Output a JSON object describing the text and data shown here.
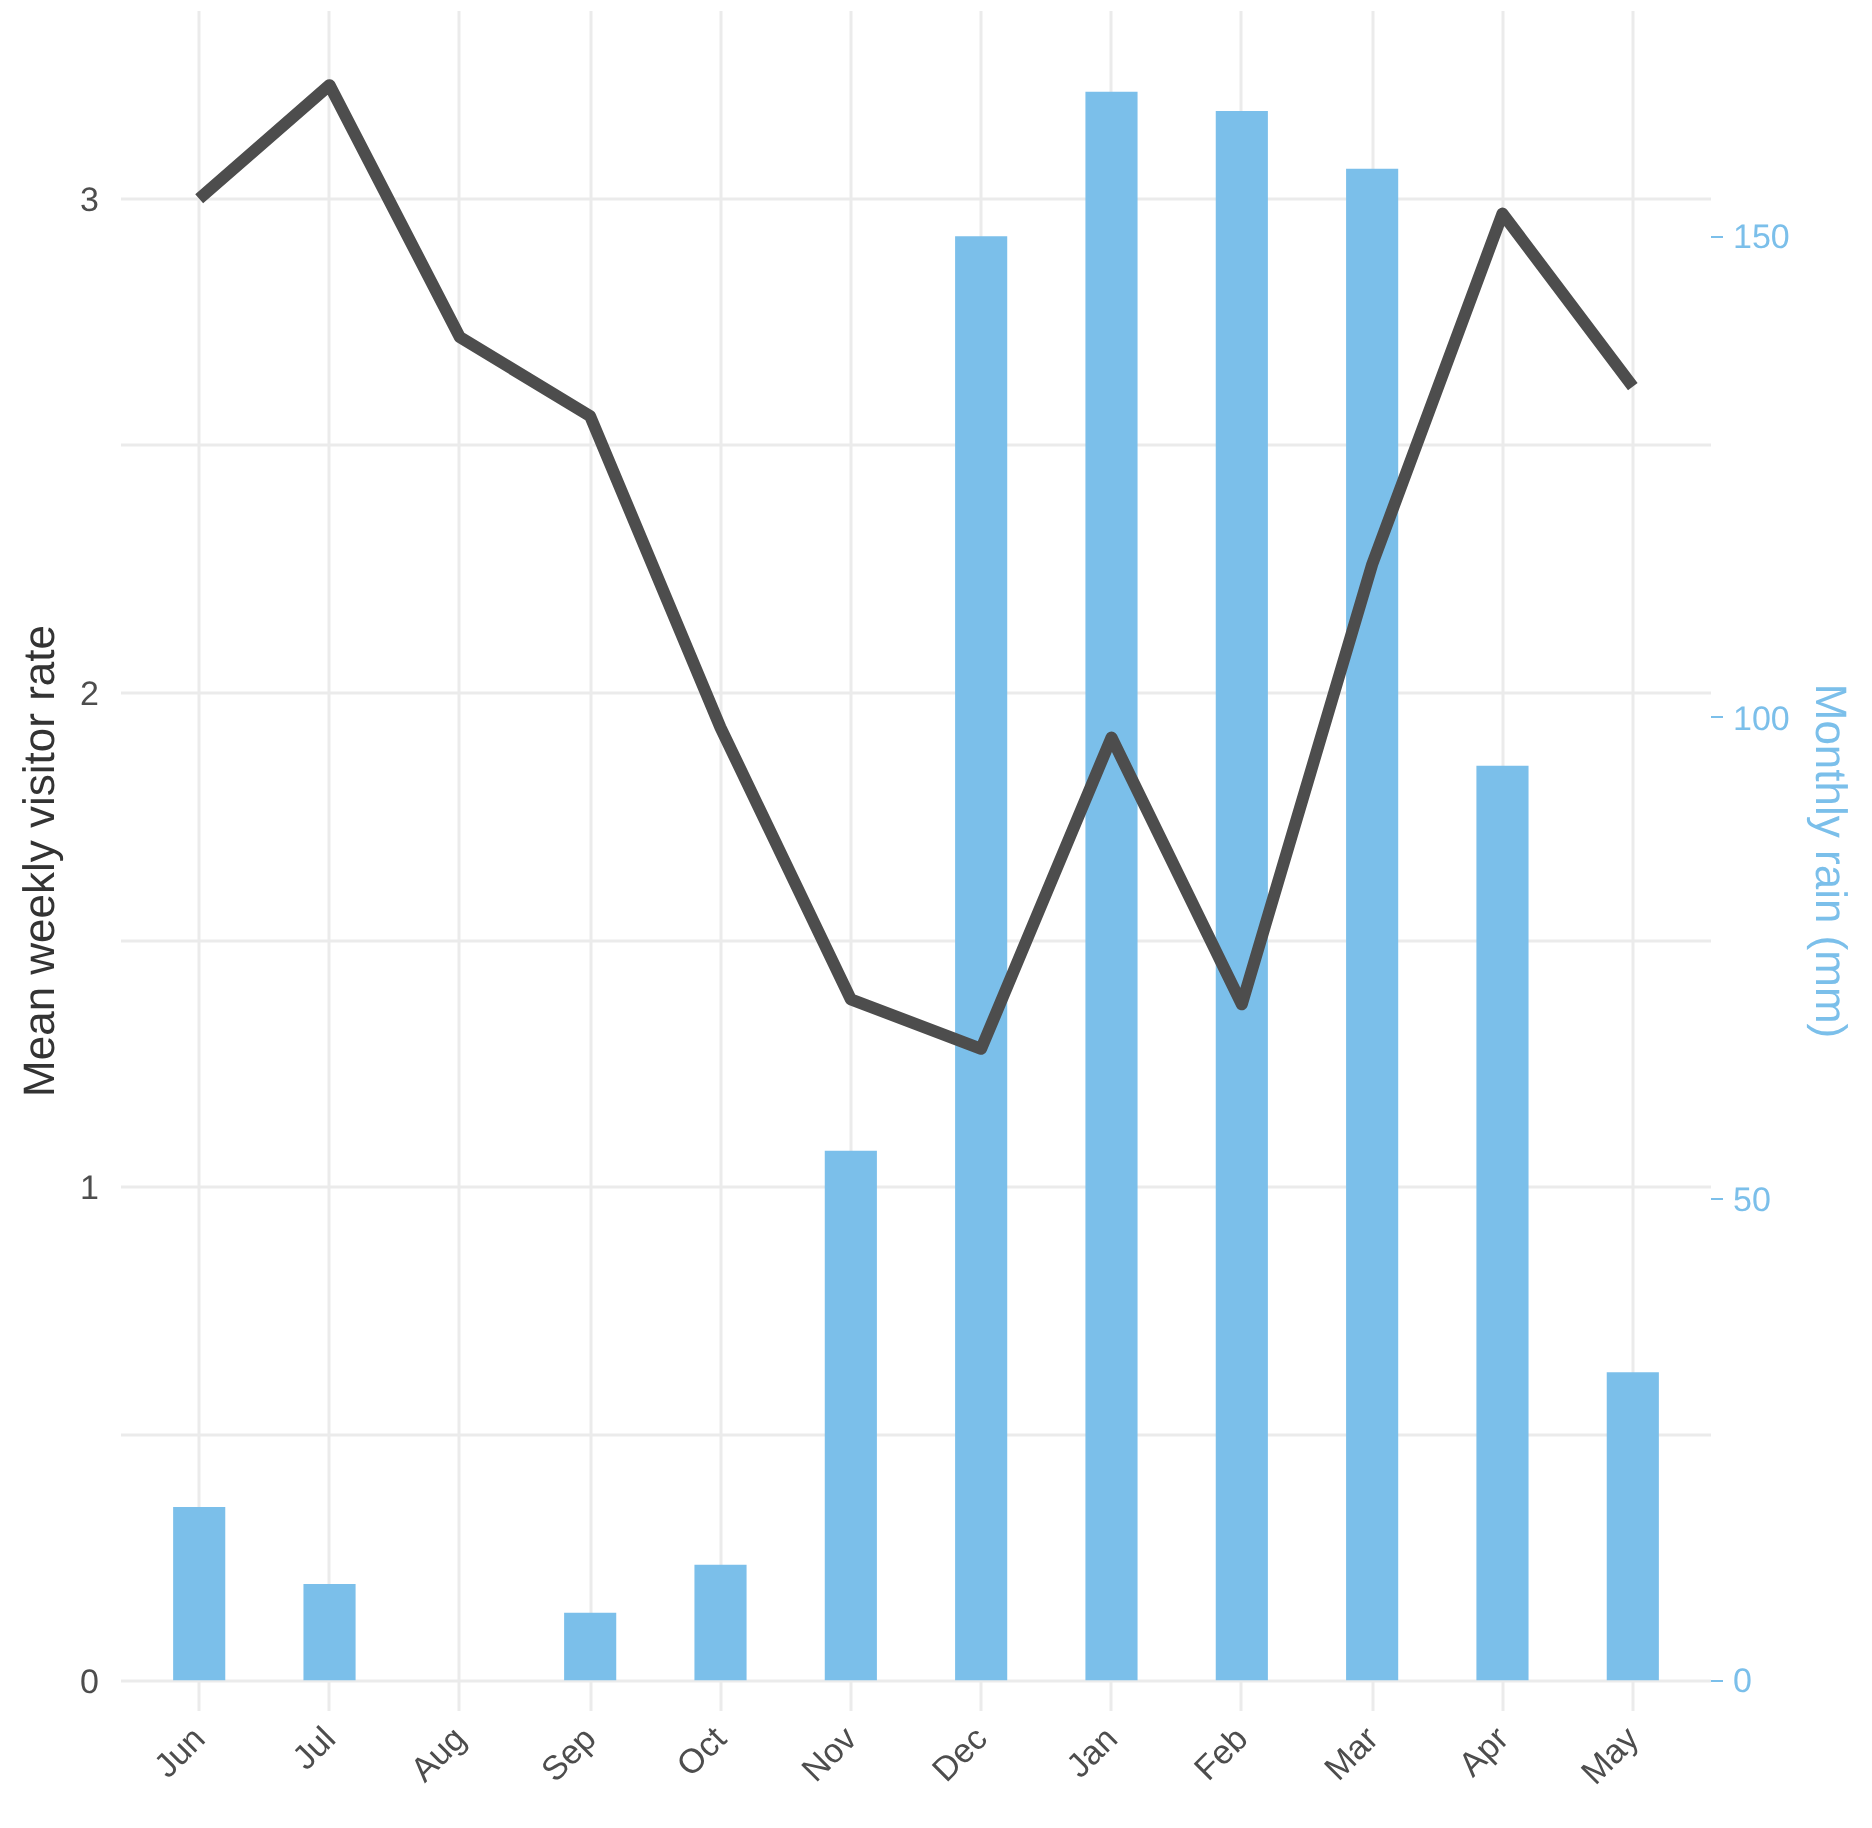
{
  "chart_data": {
    "type": "bar",
    "categories": [
      "Jun",
      "Jul",
      "Aug",
      "Sep",
      "Oct",
      "Nov",
      "Dec",
      "Jan",
      "Feb",
      "Mar",
      "Apr",
      "May"
    ],
    "ylabel": "Mean weekly visitor rate",
    "y2label": "Monthly rain (mm)",
    "series": [
      {
        "axis": "y2",
        "color": "#7bbfea",
        "values": [
          18,
          10,
          0,
          7,
          12,
          55,
          150,
          165,
          163,
          157,
          95,
          32
        ]
      },
      {
        "type": "line",
        "axis": "y",
        "color": "#4d4d4d",
        "values": [
          3.0,
          3.23,
          2.72,
          2.56,
          1.93,
          1.38,
          1.28,
          1.91,
          1.37,
          2.26,
          2.97,
          2.62
        ]
      }
    ],
    "ylim": [
      -0.06,
      3.38
    ],
    "yticks": [
      0,
      {
        "value": 0.5,
        "label": null
      },
      1,
      {
        "value": 1.5,
        "label": null
      },
      2,
      {
        "value": 2.5,
        "label": null
      },
      3
    ],
    "y2lim": [
      -3.2,
      173.4
    ],
    "y2ticks": [
      0,
      50,
      100,
      150
    ],
    "grid": true,
    "line_style": "solid",
    "marker": "none"
  }
}
